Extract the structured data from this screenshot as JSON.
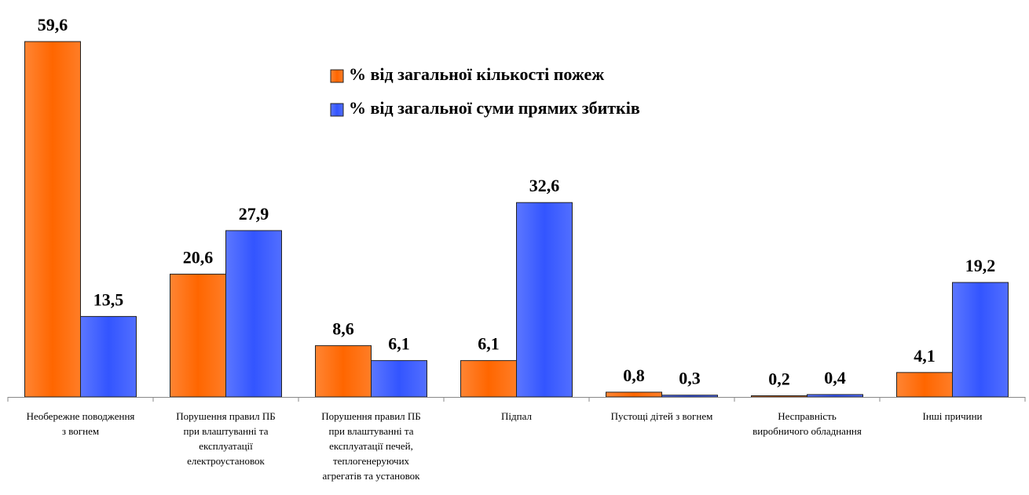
{
  "chart_data": {
    "type": "bar",
    "categories": [
      "Необережне поводження\nз вогнем",
      "Порушення правил ПБ\nпри влаштуванні та\nексплуатації\nелектроустановок",
      "Порушення правил ПБ\nпри влаштуванні та\nексплуатації печей,\nтеплогенеруючих\nагрегатів та установок",
      "Підпал",
      "Пустощі дітей з вогнем",
      "Несправність\nвиробничого обладнання",
      "Інші причини"
    ],
    "series": [
      {
        "name": "% від загальної кількості пожеж",
        "color": "#ff6600",
        "values": [
          59.6,
          20.6,
          8.6,
          6.1,
          0.8,
          0.2,
          4.1
        ],
        "value_labels": [
          "59,6",
          "20,6",
          "8,6",
          "6,1",
          "0,8",
          "0,2",
          "4,1"
        ]
      },
      {
        "name": "% від загальної суми прямих збитків",
        "color": "#3355ff",
        "values": [
          13.5,
          27.9,
          6.1,
          32.6,
          0.3,
          0.4,
          19.2
        ],
        "value_labels": [
          "13,5",
          "27,9",
          "6,1",
          "32,6",
          "0,3",
          "0,4",
          "19,2"
        ]
      }
    ]
  }
}
